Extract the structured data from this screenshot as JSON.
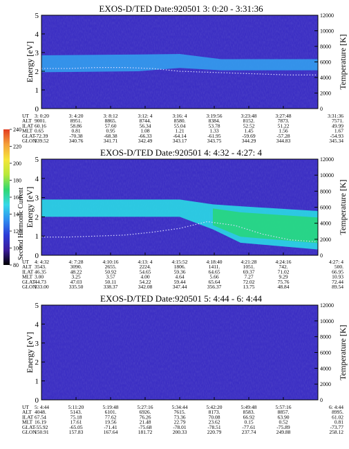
{
  "colors": {
    "background": "#ffffff",
    "spectrogram_base": "#3c2fc4",
    "spectrogram_dark": "#2a1d98",
    "band_light": "#33a3f0",
    "band_cyan": "#29e3e6",
    "band_green": "#27d86a",
    "trace_dots": "#d9d9ff",
    "colorbar_stops": [
      "#000000",
      "#3a1c9c",
      "#2c3cd8",
      "#2f8ff0",
      "#35d9e8",
      "#2fd870",
      "#b8e83a",
      "#f5e63a",
      "#f5a13a",
      "#e23b1f"
    ]
  },
  "colorbar": {
    "label": "Second Harmonic Current",
    "ticks": [
      "80",
      "100",
      "120",
      "140",
      "160",
      "180",
      "200",
      "220",
      "240"
    ]
  },
  "chart_data": [
    {
      "type": "heatmap",
      "title": "EXOS-D/TED   Date:920501  3: 0:20 - 3:31:36",
      "ylabel": "Energy [eV]",
      "y2label": "Temperature [K]",
      "ylim": [
        0,
        5
      ],
      "y2lim": [
        0,
        12000
      ],
      "yticks": [
        "0",
        "1",
        "2",
        "3",
        "4",
        "5"
      ],
      "y2ticks": [
        "0",
        "2000",
        "4000",
        "6000",
        "8000",
        "10000",
        "12000"
      ],
      "band": {
        "x_frac": [
          0.0,
          0.35,
          0.5,
          0.65,
          1.0
        ],
        "center_ev": [
          2.4,
          2.45,
          2.55,
          2.35,
          2.35
        ],
        "width_ev": [
          0.9,
          0.9,
          0.75,
          0.6,
          0.6
        ],
        "color": "band_light"
      },
      "temperature_trace_ev": [
        2.15,
        2.15,
        2.2,
        2.2,
        2.15,
        2.0,
        1.95,
        1.9,
        1.85,
        1.8,
        1.8
      ],
      "table_rows": [
        {
          "label": "UT",
          "values": [
            "3: 0:20",
            "3: 4:20",
            "3: 8:12",
            "3:12: 4",
            "3:16: 4",
            "3:19:56",
            "3:23:48",
            "3:27:48",
            "3:31:36"
          ]
        },
        {
          "label": "ALT",
          "values": [
            "9001.",
            "8951.",
            "8865.",
            "8744.",
            "8580.",
            "8384.",
            "8152.",
            "7873.",
            "7571."
          ]
        },
        {
          "label": "ILAT",
          "values": [
            "60.16",
            "58.86",
            "57.60",
            "56.34",
            "55.04",
            "53.78",
            "52.52",
            "51.22",
            "49.99"
          ]
        },
        {
          "label": "MLT",
          "values": [
            "0.65",
            "0.81",
            "0.95",
            "1.08",
            "1.21",
            "1.33",
            "1.45",
            "1.56",
            "1.67"
          ]
        },
        {
          "label": "GLAT",
          "values": [
            "-72.39",
            "-70.38",
            "-68.38",
            "-66.33",
            "-64.14",
            "-61.95",
            "-59.69",
            "-57.28",
            "-54.93"
          ]
        },
        {
          "label": "GLON",
          "values": [
            "339.52",
            "340.76",
            "341.71",
            "342.49",
            "343.17",
            "343.75",
            "344.29",
            "344.83",
            "345.34"
          ]
        }
      ]
    },
    {
      "type": "heatmap",
      "title": "EXOS-D/TED   Date:920501  4: 4:32 - 4:27: 4",
      "ylabel": "Energy [eV]",
      "y2label": "Temperature [K]",
      "ylim": [
        0,
        5
      ],
      "y2lim": [
        0,
        12000
      ],
      "yticks": [
        "0",
        "1",
        "2",
        "3",
        "4",
        "5"
      ],
      "y2ticks": [
        "0",
        "2000",
        "4000",
        "6000",
        "8000",
        "10000",
        "12000"
      ],
      "band": {
        "x_frac": [
          0.0,
          0.5,
          0.62,
          0.72,
          1.0
        ],
        "center_ev": [
          2.45,
          2.45,
          2.0,
          1.6,
          1.3
        ],
        "width_ev": [
          0.9,
          0.9,
          1.3,
          1.9,
          2.0
        ],
        "color": "band_cyan"
      },
      "temperature_trace_ev": [
        0.95,
        0.95,
        1.0,
        1.05,
        1.2,
        1.4,
        1.75,
        1.55,
        1.1,
        0.8,
        0.7
      ],
      "table_rows": [
        {
          "label": "UT",
          "values": [
            "4: 4:32",
            "4: 7:28",
            "4:10:16",
            "4:13: 4",
            "4:15:52",
            "4:18:40",
            "4:21:28",
            "4:24:16",
            "4:27: 4"
          ]
        },
        {
          "label": "ALT",
          "values": [
            "3543.",
            "3090.",
            "2655.",
            "2224.",
            "1806.",
            "1411.",
            "1051.",
            "742.",
            "500."
          ]
        },
        {
          "label": "ILAT",
          "values": [
            "46.35",
            "48.22",
            "50.92",
            "54.65",
            "59.36",
            "64.65",
            "69.37",
            "71.02",
            "66.95"
          ]
        },
        {
          "label": "MLT",
          "values": [
            "3.00",
            "3.25",
            "3.57",
            "4.00",
            "4.64",
            "5.66",
            "7.27",
            "9.29",
            "10.93"
          ]
        },
        {
          "label": "GLAT",
          "values": [
            "44.73",
            "47.03",
            "50.11",
            "54.22",
            "59.44",
            "65.64",
            "72.02",
            "75.76",
            "72.44"
          ]
        },
        {
          "label": "GLON",
          "values": [
            "333.00",
            "335.50",
            "338.37",
            "342.08",
            "347.44",
            "356.37",
            "13.75",
            "48.84",
            "89.54"
          ]
        }
      ]
    },
    {
      "type": "heatmap",
      "title": "EXOS-D/TED   Date:920501  5: 4:44 - 6: 4:44",
      "ylabel": "Energy [eV]",
      "y2label": "Temperature [K]",
      "ylim": [
        0,
        5
      ],
      "y2lim": [
        0,
        12000
      ],
      "yticks": [
        "0",
        "1",
        "2",
        "3",
        "4",
        "5"
      ],
      "y2ticks": [
        "0",
        "2000",
        "4000",
        "6000",
        "8000",
        "10000",
        "12000"
      ],
      "band": null,
      "temperature_trace_ev": [],
      "table_rows": [
        {
          "label": "UT",
          "values": [
            "5: 4:44",
            "5:11:20",
            "5:19:48",
            "5:27:16",
            "5:34:44",
            "5:42:20",
            "5:49:48",
            "5:57:16",
            "6: 4:44"
          ]
        },
        {
          "label": "ALT",
          "values": [
            "4048.",
            "5143.",
            "6101.",
            "6926.",
            "7615.",
            "8173.",
            "8583.",
            "8857.",
            "8995."
          ]
        },
        {
          "label": "ILAT",
          "values": [
            "67.54",
            "75.18",
            "77.62",
            "76.26",
            "73.36",
            "70.08",
            "66.92",
            "63.90",
            "61.02"
          ]
        },
        {
          "label": "MLT",
          "values": [
            "16.19",
            "17.61",
            "19.56",
            "21.48",
            "22.79",
            "23.62",
            "0.15",
            "0.52",
            "0.81"
          ]
        },
        {
          "label": "GLAT",
          "values": [
            "-55.92",
            "-65.05",
            "-71.41",
            "-75.68",
            "-78.01",
            "-78.51",
            "-77.61",
            "-75.89",
            "-73.77"
          ]
        },
        {
          "label": "GLON",
          "values": [
            "150.91",
            "157.83",
            "167.64",
            "181.72",
            "200.33",
            "220.79",
            "237.74",
            "249.88",
            "258.12"
          ]
        }
      ]
    }
  ]
}
